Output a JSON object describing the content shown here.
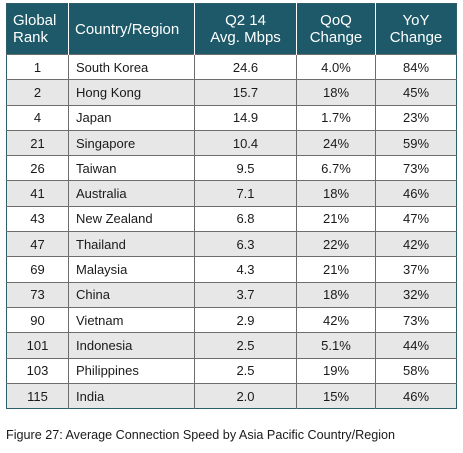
{
  "chart_data": {
    "type": "table",
    "title": "",
    "columns": [
      "Global Rank",
      "Country/Region",
      "Q2 14 Avg. Mbps",
      "QoQ Change",
      "YoY Change"
    ],
    "header_lines": [
      [
        "Global",
        "Rank"
      ],
      [
        "Country/Region"
      ],
      [
        "Q2 14",
        "Avg. Mbps"
      ],
      [
        "QoQ",
        "Change"
      ],
      [
        "YoY",
        "Change"
      ]
    ],
    "rows": [
      {
        "rank": "1",
        "country": "South Korea",
        "mbps": "24.6",
        "qoq": "4.0%",
        "yoy": "84%"
      },
      {
        "rank": "2",
        "country": "Hong Kong",
        "mbps": "15.7",
        "qoq": "18%",
        "yoy": "45%"
      },
      {
        "rank": "4",
        "country": "Japan",
        "mbps": "14.9",
        "qoq": "1.7%",
        "yoy": "23%"
      },
      {
        "rank": "21",
        "country": "Singapore",
        "mbps": "10.4",
        "qoq": "24%",
        "yoy": "59%"
      },
      {
        "rank": "26",
        "country": "Taiwan",
        "mbps": "9.5",
        "qoq": "6.7%",
        "yoy": "73%"
      },
      {
        "rank": "41",
        "country": "Australia",
        "mbps": "7.1",
        "qoq": "18%",
        "yoy": "46%"
      },
      {
        "rank": "43",
        "country": "New Zealand",
        "mbps": "6.8",
        "qoq": "21%",
        "yoy": "47%"
      },
      {
        "rank": "47",
        "country": "Thailand",
        "mbps": "6.3",
        "qoq": "22%",
        "yoy": "42%"
      },
      {
        "rank": "69",
        "country": "Malaysia",
        "mbps": "4.3",
        "qoq": "21%",
        "yoy": "37%"
      },
      {
        "rank": "73",
        "country": "China",
        "mbps": "3.7",
        "qoq": "18%",
        "yoy": "32%"
      },
      {
        "rank": "90",
        "country": "Vietnam",
        "mbps": "2.9",
        "qoq": "42%",
        "yoy": "73%"
      },
      {
        "rank": "101",
        "country": "Indonesia",
        "mbps": "2.5",
        "qoq": "5.1%",
        "yoy": "44%"
      },
      {
        "rank": "103",
        "country": "Philippines",
        "mbps": "2.5",
        "qoq": "19%",
        "yoy": "58%"
      },
      {
        "rank": "115",
        "country": "India",
        "mbps": "2.0",
        "qoq": "15%",
        "yoy": "46%"
      }
    ],
    "caption": "Figure 27: Average Connection Speed by Asia Pacific Country/Region",
    "colors": {
      "header_bg": "#1d5969",
      "header_text": "#ffffff",
      "stripe": "#e7e7e7"
    }
  }
}
